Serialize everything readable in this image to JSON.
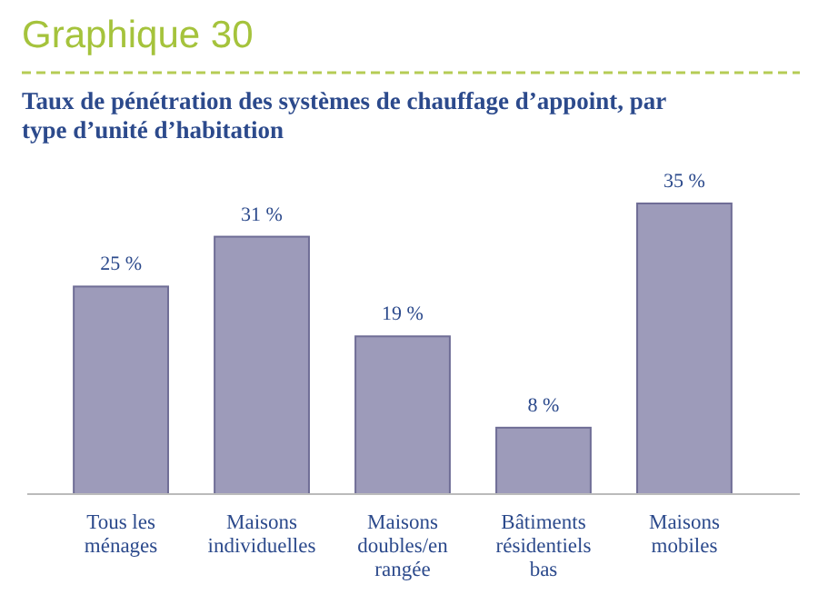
{
  "chart_data": {
    "type": "bar",
    "title": "Graphique 30",
    "subtitle": "Taux de pénétration des systèmes de chauffage d’appoint, par type d’unité d’habitation",
    "categories": [
      "Tous les ménages",
      "Maisons individuelles",
      "Maisons doubles/en rangée",
      "Bâtiments résidentiels bas",
      "Maisons mobiles"
    ],
    "values": [
      25,
      31,
      19,
      8,
      35
    ],
    "color": "#9d9bba",
    "value_labels": [
      "25 %",
      "31 %",
      "19 %",
      "8 %",
      "35 %"
    ]
  }
}
